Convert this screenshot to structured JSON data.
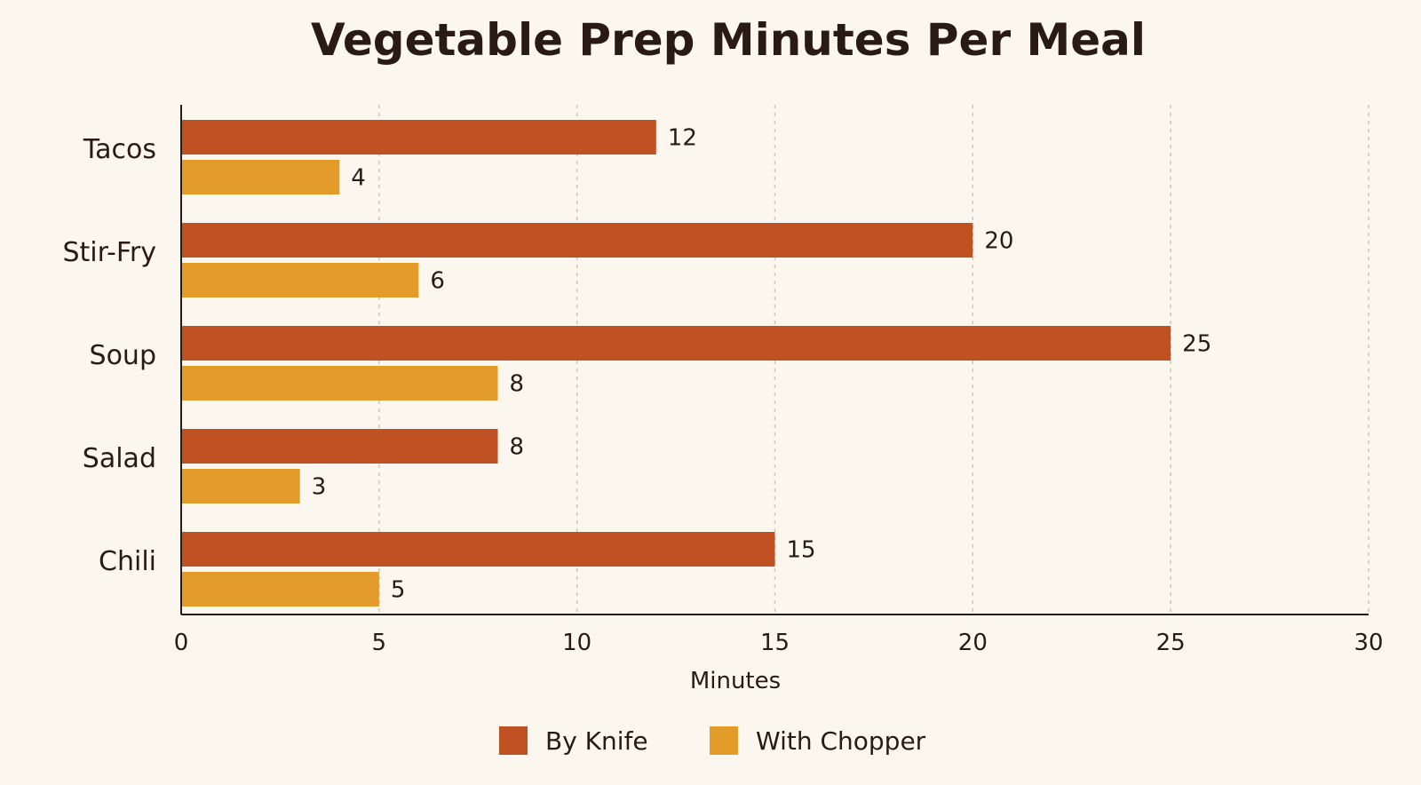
{
  "chart_data": {
    "type": "bar",
    "orientation": "horizontal",
    "title": "Vegetable Prep Minutes Per Meal",
    "xlabel": "Minutes",
    "ylabel": "",
    "categories": [
      "Tacos",
      "Stir-Fry",
      "Soup",
      "Salad",
      "Chili"
    ],
    "series": [
      {
        "name": "By Knife",
        "color": "#c05123",
        "values": [
          12,
          20,
          25,
          8,
          15
        ]
      },
      {
        "name": "With Chopper",
        "color": "#e39b2a",
        "values": [
          4,
          6,
          8,
          3,
          5
        ]
      }
    ],
    "xlim": [
      0,
      30
    ],
    "xticks": [
      0,
      5,
      10,
      15,
      20,
      25,
      30
    ],
    "grid": "vertical-dashed",
    "data_labels": true,
    "legend_position": "bottom"
  }
}
